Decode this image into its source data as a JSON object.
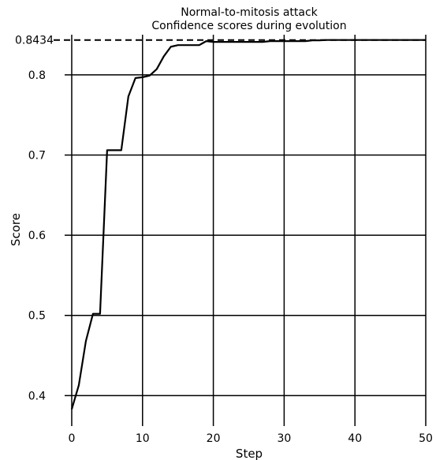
{
  "chart_data": {
    "type": "line",
    "title": "Normal-to-mitosis attack",
    "subtitle": "Confidence scores during evolution",
    "xlabel": "Step",
    "ylabel": "Score",
    "xlim": [
      -1,
      50
    ],
    "ylim": [
      0.362,
      0.85
    ],
    "x_ticks": [
      0,
      10,
      20,
      30,
      40,
      50
    ],
    "y_ticks": [
      0.4,
      0.5,
      0.6,
      0.7,
      0.8
    ],
    "y_tick_labels": [
      "0.4",
      "0.5",
      "0.6",
      "0.7",
      "0.8"
    ],
    "grid": true,
    "reference_line": {
      "value": 0.8434,
      "label": "0.8434",
      "style": "dashed"
    },
    "series": [
      {
        "x": [
          0,
          1,
          2,
          3,
          4,
          5,
          6,
          7,
          8,
          9,
          10,
          11,
          12,
          13,
          14,
          15,
          16,
          17,
          18,
          19,
          20,
          21,
          22,
          23,
          24,
          25,
          26,
          27,
          28,
          29,
          30,
          31,
          32,
          33,
          34,
          35,
          36,
          37,
          38,
          39,
          40,
          41,
          42,
          43,
          44,
          45,
          46,
          47,
          48,
          49,
          50
        ],
        "values": [
          0.383,
          0.413,
          0.468,
          0.502,
          0.502,
          0.706,
          0.706,
          0.706,
          0.773,
          0.796,
          0.797,
          0.799,
          0.807,
          0.823,
          0.835,
          0.837,
          0.837,
          0.837,
          0.837,
          0.842,
          0.841,
          0.841,
          0.841,
          0.841,
          0.841,
          0.841,
          0.841,
          0.841,
          0.842,
          0.842,
          0.842,
          0.842,
          0.842,
          0.842,
          0.843,
          0.843,
          0.8434,
          0.8434,
          0.8434,
          0.8434,
          0.8434,
          0.8434,
          0.8434,
          0.8434,
          0.8434,
          0.8434,
          0.8434,
          0.8434,
          0.8434,
          0.8434,
          0.8434
        ],
        "color": "#000000"
      }
    ]
  }
}
